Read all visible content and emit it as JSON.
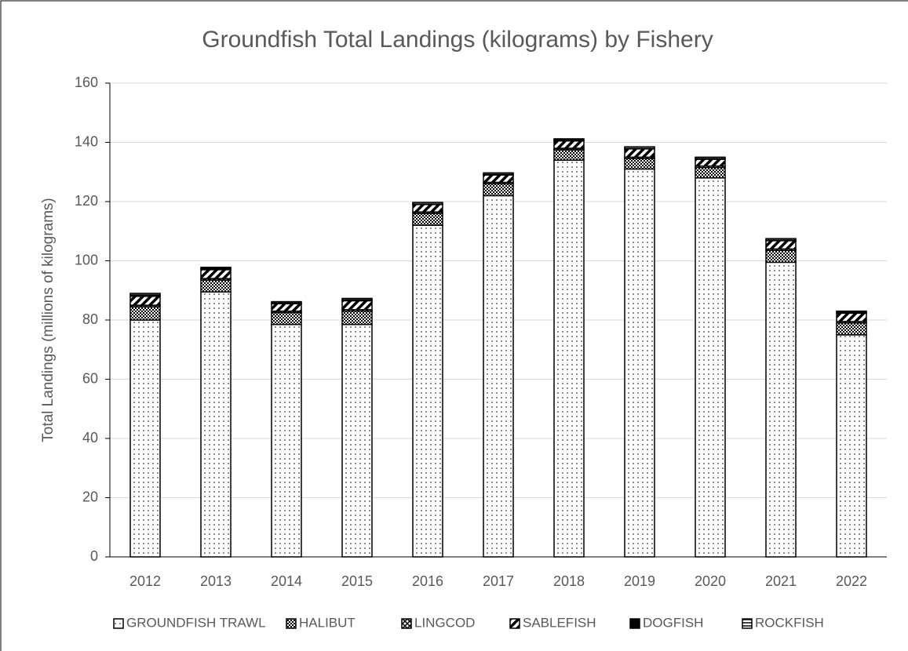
{
  "chart_data": {
    "type": "stacked_bar",
    "title": "Groundfish Total Landings (kilograms) by Fishery",
    "y_label": "Total Landings (millions of kilograms)",
    "categories": [
      "2012",
      "2013",
      "2014",
      "2015",
      "2016",
      "2017",
      "2018",
      "2019",
      "2020",
      "2021",
      "2022"
    ],
    "series": [
      {
        "name": "GROUNDFISH TRAWL",
        "color": "#000000",
        "values": [
          80,
          89.5,
          78.5,
          78.5,
          112,
          122,
          134,
          131,
          128,
          99.5,
          75
        ]
      },
      {
        "name": "HALIBUT",
        "color": "#000000",
        "values": [
          4.5,
          4,
          4,
          4.5,
          4,
          4,
          3.5,
          3.5,
          3.5,
          4,
          4
        ]
      },
      {
        "name": "LINGCOD",
        "color": "#000000",
        "values": [
          0.5,
          0.5,
          0.5,
          0.5,
          0.5,
          0.5,
          0.5,
          0.5,
          0.5,
          0.5,
          0.5
        ]
      },
      {
        "name": "SABLEFISH",
        "color": "#000000",
        "values": [
          3,
          3,
          2.5,
          3,
          2.5,
          2.5,
          2.5,
          2.8,
          2.3,
          2.8,
          2.8
        ]
      },
      {
        "name": "DOGFISH",
        "color": "#000000",
        "values": [
          0.5,
          0.3,
          0.2,
          0.3,
          0.2,
          0.2,
          0.2,
          0.2,
          0.2,
          0.2,
          0.2
        ]
      },
      {
        "name": "ROCKFISH",
        "color": "#000000",
        "values": [
          0.5,
          0.5,
          0.5,
          0.5,
          0.5,
          0.5,
          0.5,
          0.5,
          0.5,
          0.5,
          0.5
        ]
      }
    ],
    "ylim": [
      0,
      160
    ],
    "yticks": [
      0,
      20,
      40,
      60,
      80,
      100,
      120,
      140,
      160
    ],
    "grid": true,
    "legend": "bottom"
  }
}
